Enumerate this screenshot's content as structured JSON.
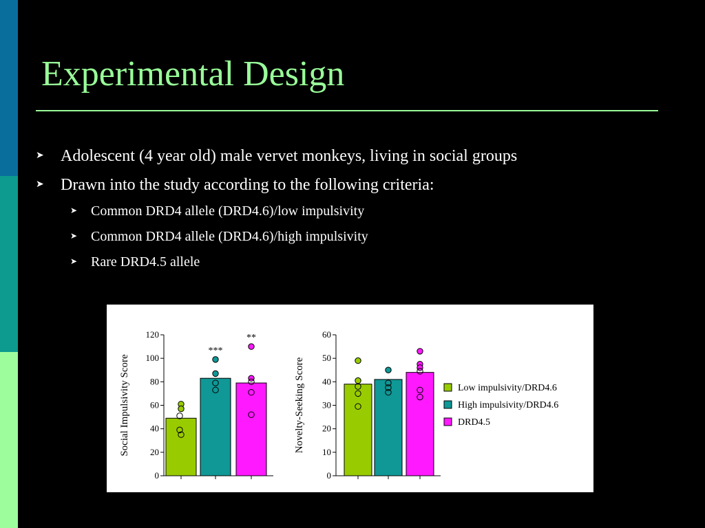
{
  "slide": {
    "title": "Experimental Design",
    "bullets": [
      "Adolescent (4 year old) male vervet monkeys, living in social groups",
      "Drawn into the study according to the following criteria:"
    ],
    "sub_bullets": [
      "Common DRD4 allele (DRD4.6)/low impulsivity",
      "Common DRD4 allele (DRD4.6)/high impulsivity",
      "Rare DRD4.5 allele"
    ],
    "bullet_icon": "arrowhead-bullet-icon",
    "colors": {
      "background": "#000000",
      "title": "#99ff99",
      "text": "#ffffff"
    }
  },
  "chart_data": [
    {
      "type": "bar",
      "ylabel": "Social Impulsivity Score",
      "ylim": [
        0,
        120
      ],
      "yticks": [
        0,
        20,
        40,
        60,
        80,
        100,
        120
      ],
      "grid": false,
      "series": [
        {
          "name": "Low impulsivity/DRD4.6",
          "value": 49,
          "color": "#99cc00",
          "points": [
            61,
            57,
            51,
            39,
            35
          ],
          "filled_points": [
            61,
            57
          ],
          "annotation": ""
        },
        {
          "name": "High impulsivity/DRD4.6",
          "value": 83,
          "color": "#0f9896",
          "points": [
            99,
            87,
            79,
            73
          ],
          "filled_points": [
            99,
            87
          ],
          "annotation": "***"
        },
        {
          "name": "DRD4.5",
          "value": 79,
          "color": "#ff19ff",
          "points": [
            110,
            83,
            80,
            71,
            52
          ],
          "filled_points": [
            110,
            83
          ],
          "annotation": "**"
        }
      ]
    },
    {
      "type": "bar",
      "ylabel": "Novelty-Seeking Score",
      "ylim": [
        0,
        60
      ],
      "yticks": [
        0,
        10,
        20,
        30,
        40,
        50,
        60
      ],
      "grid": false,
      "series": [
        {
          "name": "Low impulsivity/DRD4.6",
          "value": 39,
          "color": "#99cc00",
          "points": [
            49,
            40.5,
            38,
            35,
            29.5
          ],
          "filled_points": [
            49,
            40.5
          ],
          "annotation": ""
        },
        {
          "name": "High impulsivity/DRD4.6",
          "value": 41,
          "color": "#0f9896",
          "points": [
            45,
            39.5,
            37.5,
            35.5
          ],
          "filled_points": [
            45
          ],
          "annotation": ""
        },
        {
          "name": "DRD4.5",
          "value": 44,
          "color": "#ff19ff",
          "points": [
            53,
            47.5,
            46,
            44.5,
            36.5,
            33.5
          ],
          "filled_points": [
            53,
            47.5,
            46
          ],
          "annotation": ""
        }
      ]
    }
  ],
  "legend": {
    "placement": "right",
    "entries": [
      {
        "label": "Low impulsivity/DRD4.6",
        "color": "#99cc00"
      },
      {
        "label": "High impulsivity/DRD4.6",
        "color": "#0f9896"
      },
      {
        "label": "DRD4.5",
        "color": "#ff19ff"
      }
    ]
  }
}
